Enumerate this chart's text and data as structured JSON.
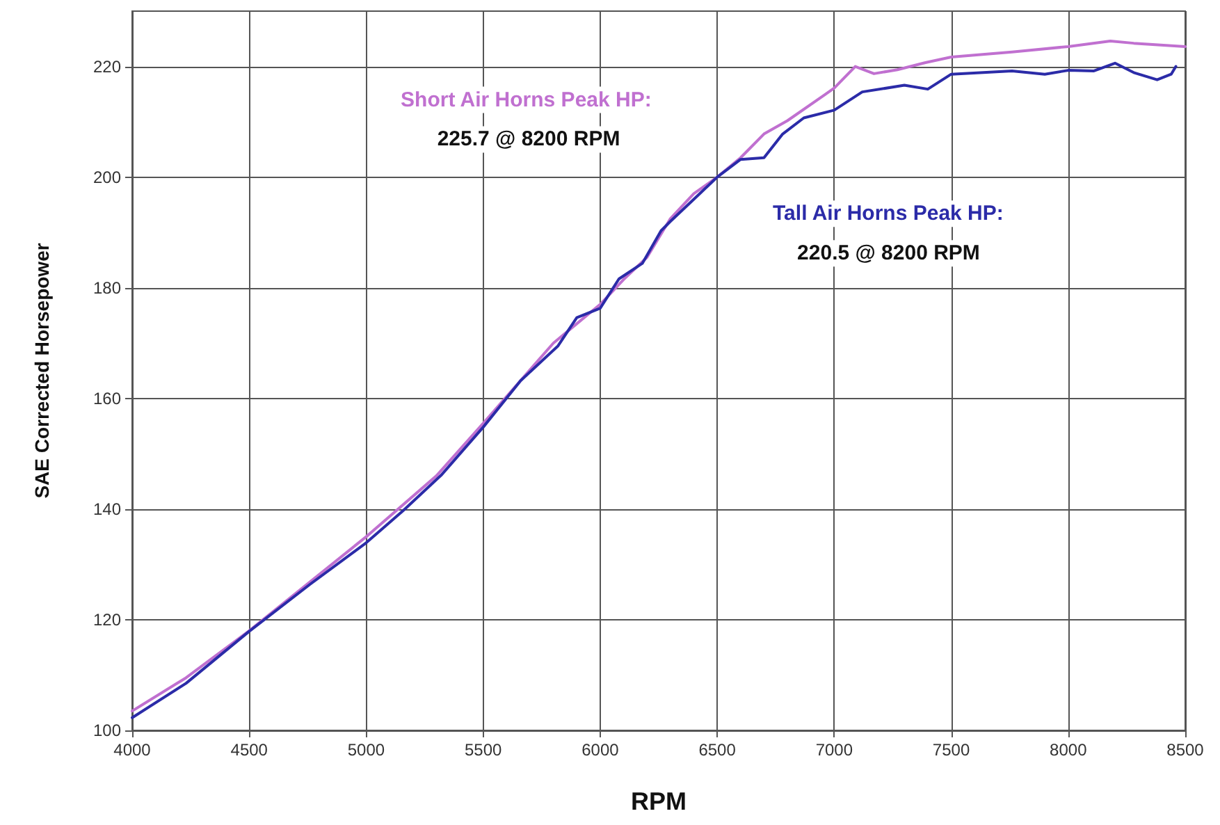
{
  "chart_data": {
    "type": "line",
    "xlabel": "RPM",
    "ylabel": "SAE Corrected Horsepower",
    "annotations": [
      "Short Air Horns Peak HP:",
      "225.7 @ 8200 RPM",
      "Tall Air Horns Peak HP:",
      "220.5 @ 8200 RPM"
    ],
    "series": [
      {
        "color": "#c070d0",
        "x": [
          4000,
          4230,
          4500,
          5000,
          5300,
          5500,
          5800,
          5900,
          6000,
          6100,
          6200,
          6300,
          6400,
          6500,
          6600,
          6700,
          6800,
          6960,
          7000,
          7090,
          7170,
          7270,
          7390,
          7500,
          7760,
          8000,
          8180,
          8280,
          8500
        ],
        "values": [
          103.5,
          109.5,
          118,
          135,
          146,
          155.5,
          170,
          173.5,
          177,
          181.5,
          185.5,
          192.5,
          197,
          200,
          203.5,
          207.8,
          210.2,
          214.9,
          216.1,
          220,
          218.7,
          219.4,
          220.7,
          221.7,
          222.6,
          223.6,
          224.6,
          224.2,
          223.6
        ]
      },
      {
        "color": "#2b2ba8",
        "x": [
          4000,
          4230,
          4500,
          4760,
          5000,
          5160,
          5320,
          5500,
          5660,
          5820,
          5900,
          6000,
          6080,
          6180,
          6260,
          6300,
          6400,
          6500,
          6600,
          6700,
          6780,
          6870,
          7000,
          7120,
          7300,
          7400,
          7500,
          7760,
          7900,
          8000,
          8110,
          8200,
          8280,
          8380,
          8440,
          8460
        ],
        "values": [
          102.3,
          108.5,
          117.9,
          126.4,
          133.9,
          139.8,
          146.1,
          154.8,
          163.2,
          169.5,
          174.6,
          176.3,
          181.6,
          184.4,
          190.3,
          192,
          196,
          200,
          203.2,
          203.5,
          207.8,
          210.7,
          212.1,
          215.4,
          216.6,
          215.9,
          218.6,
          219.2,
          218.6,
          219.3,
          219.2,
          220.6,
          218.9,
          217.6,
          218.6,
          220
        ]
      }
    ],
    "xlim": [
      4000,
      8500
    ],
    "xticks": [
      4000,
      4500,
      5000,
      5500,
      6000,
      6500,
      7000,
      7500,
      8000,
      8500
    ],
    "ylim": [
      100,
      230
    ],
    "yticks": [
      100,
      120,
      140,
      160,
      180,
      200,
      220
    ],
    "grid": true,
    "marker": "none",
    "line_style": "solid"
  }
}
